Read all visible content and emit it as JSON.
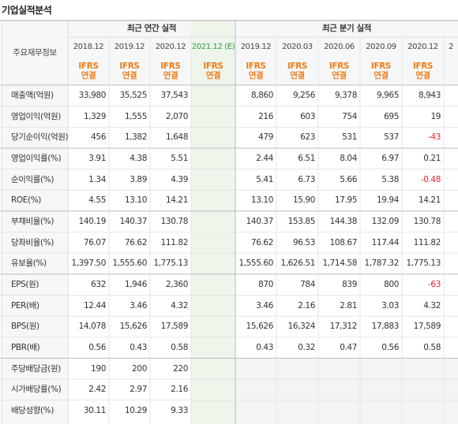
{
  "title": "기업실적분석",
  "header": {
    "corner": "주요재무정보",
    "annual_group": "최근 연간 실적",
    "quarter_group": "최근 분기 실적",
    "annual_periods": [
      "2018.12",
      "2019.12",
      "2020.12",
      "2021.12 (E)"
    ],
    "quarter_periods": [
      "2019.12",
      "2020.03",
      "2020.06",
      "2020.09",
      "2020.12"
    ],
    "overflow_col": "2",
    "ifrs_line1": "IFRS",
    "ifrs_line2": "연결"
  },
  "rows": [
    {
      "label": "매출액(억원)",
      "annual": [
        "33,980",
        "35,525",
        "37,543",
        ""
      ],
      "quarter": [
        "8,860",
        "9,256",
        "9,378",
        "9,965",
        "8,943"
      ]
    },
    {
      "label": "영업이익(억원)",
      "annual": [
        "1,329",
        "1,555",
        "2,070",
        ""
      ],
      "quarter": [
        "216",
        "603",
        "754",
        "695",
        "19"
      ]
    },
    {
      "label": "당기순이익(억원)",
      "annual": [
        "456",
        "1,382",
        "1,648",
        ""
      ],
      "quarter": [
        "479",
        "623",
        "531",
        "537",
        "-43"
      ]
    },
    {
      "label": "영업이익률(%)",
      "annual": [
        "3.91",
        "4.38",
        "5.51",
        ""
      ],
      "quarter": [
        "2.44",
        "6.51",
        "8.04",
        "6.97",
        "0.21"
      ]
    },
    {
      "label": "순이익률(%)",
      "annual": [
        "1.34",
        "3.89",
        "4.39",
        ""
      ],
      "quarter": [
        "5.41",
        "6.73",
        "5.66",
        "5.38",
        "-0.48"
      ]
    },
    {
      "label": "ROE(%)",
      "annual": [
        "4.55",
        "13.10",
        "14.21",
        ""
      ],
      "quarter": [
        "13.10",
        "15.90",
        "17.95",
        "19.94",
        "14.21"
      ]
    },
    {
      "label": "부채비율(%)",
      "annual": [
        "140.19",
        "140.37",
        "130.78",
        ""
      ],
      "quarter": [
        "140.37",
        "153.85",
        "144.38",
        "132.09",
        "130.78"
      ]
    },
    {
      "label": "당좌비율(%)",
      "annual": [
        "76.07",
        "76.62",
        "111.82",
        ""
      ],
      "quarter": [
        "76.62",
        "96.53",
        "108.67",
        "117.44",
        "111.82"
      ]
    },
    {
      "label": "유보율(%)",
      "annual": [
        "1,397.50",
        "1,555.60",
        "1,775.13",
        ""
      ],
      "quarter": [
        "1,555.60",
        "1,626.51",
        "1,714.58",
        "1,787.32",
        "1,775.13"
      ]
    },
    {
      "label": "EPS(원)",
      "annual": [
        "632",
        "1,946",
        "2,360",
        ""
      ],
      "quarter": [
        "870",
        "784",
        "839",
        "800",
        "-63"
      ]
    },
    {
      "label": "PER(배)",
      "annual": [
        "12.44",
        "3.46",
        "4.32",
        ""
      ],
      "quarter": [
        "3.46",
        "2.16",
        "2.81",
        "3.03",
        "4.32"
      ]
    },
    {
      "label": "BPS(원)",
      "annual": [
        "14,078",
        "15,626",
        "17,589",
        ""
      ],
      "quarter": [
        "15,626",
        "16,324",
        "17,312",
        "17,883",
        "17,589"
      ]
    },
    {
      "label": "PBR(배)",
      "annual": [
        "0.56",
        "0.43",
        "0.58",
        ""
      ],
      "quarter": [
        "0.43",
        "0.32",
        "0.47",
        "0.56",
        "0.58"
      ]
    },
    {
      "label": "주당배당금(원)",
      "annual": [
        "190",
        "200",
        "220",
        ""
      ],
      "quarter": [
        "",
        "",
        "",
        "",
        ""
      ]
    },
    {
      "label": "시가배당률(%)",
      "annual": [
        "2.42",
        "2.97",
        "2.16",
        ""
      ],
      "quarter": [
        "",
        "",
        "",
        "",
        ""
      ]
    },
    {
      "label": "배당성향(%)",
      "annual": [
        "30.11",
        "10.29",
        "9.33",
        ""
      ],
      "quarter": [
        "",
        "",
        "",
        "",
        ""
      ]
    }
  ],
  "colors": {
    "label_bg": "#f6f7f8",
    "header_bg": "#f6f7f8",
    "estimate_bg": "#eef6ec",
    "dividend_quarter_bg": "#f4f4f4",
    "border": "#dcdde0",
    "strong_border": "#b9bbbf",
    "ifrs": "#f07d1a",
    "negative": "#e8242f",
    "estimate_text": "#2e9a3e"
  }
}
